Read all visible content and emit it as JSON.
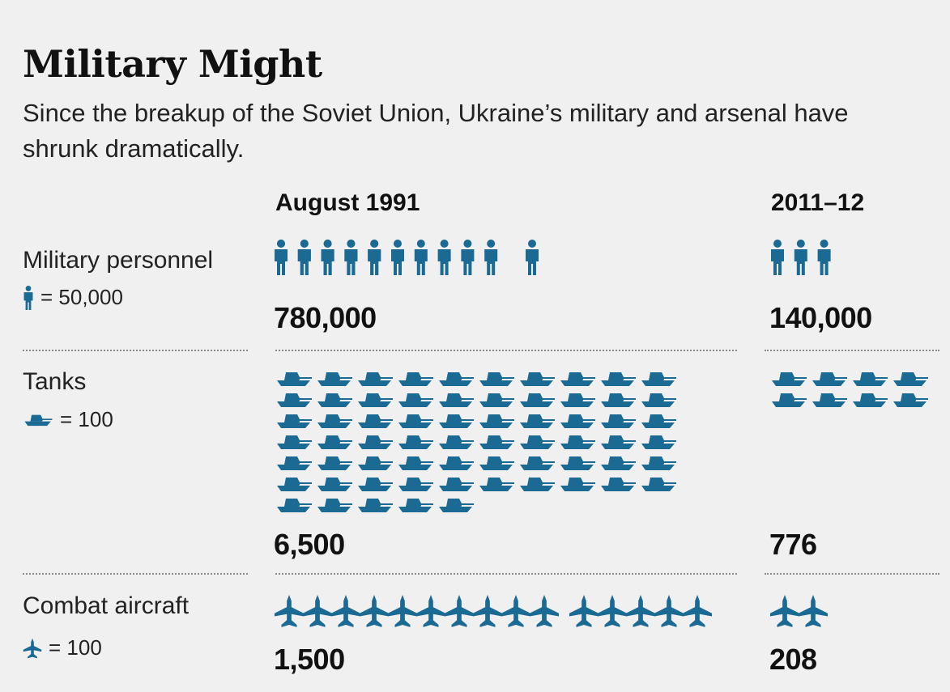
{
  "header": {
    "title": "Military Might",
    "subtitle": "Since the breakup of the Soviet Union, Ukraine’s military and arsenal have shrunk dramatically."
  },
  "columns": [
    "August 1991",
    "2011–12"
  ],
  "rows": [
    {
      "key": "personnel",
      "label": "Military personnel",
      "legend_text": "= 50,000",
      "unit_value": 50000,
      "icon": "person-icon",
      "values": [
        780000,
        140000
      ],
      "value_labels": [
        "780,000",
        "140,000"
      ]
    },
    {
      "key": "tanks",
      "label": "Tanks",
      "legend_text": "= 100",
      "unit_value": 100,
      "icon": "tank-icon",
      "values": [
        6500,
        776
      ],
      "value_labels": [
        "6,500",
        "776"
      ]
    },
    {
      "key": "aircraft",
      "label": "Combat aircraft",
      "legend_text": "= 100",
      "unit_value": 100,
      "icon": "jet-icon",
      "values": [
        1500,
        208
      ],
      "value_labels": [
        "1,500",
        "208"
      ]
    }
  ],
  "colors": {
    "icon": "#1b6a94",
    "background": "#f0f0f0",
    "text": "#1a1a1a"
  },
  "chart_data": {
    "type": "bar",
    "title": "Military Might",
    "subtitle": "Since the breakup of the Soviet Union, Ukraine’s military and arsenal have shrunk dramatically.",
    "categories": [
      "August 1991",
      "2011–12"
    ],
    "series": [
      {
        "name": "Military personnel",
        "values": [
          780000,
          140000
        ]
      },
      {
        "name": "Tanks",
        "values": [
          6500,
          776
        ]
      },
      {
        "name": "Combat aircraft",
        "values": [
          1500,
          208
        ]
      }
    ]
  }
}
